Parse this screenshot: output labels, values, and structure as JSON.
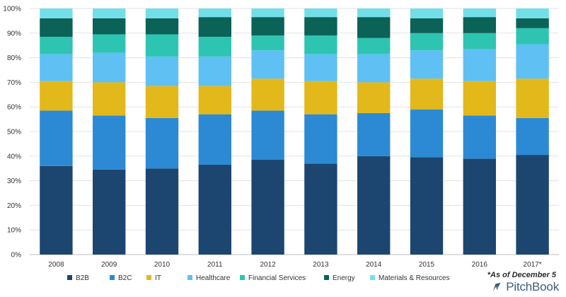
{
  "chart_data": {
    "type": "bar",
    "stacked": true,
    "normalized": true,
    "categories": [
      "2008",
      "2009",
      "2010",
      "2011",
      "2012",
      "2013",
      "2014",
      "2015",
      "2016",
      "2017*"
    ],
    "ylim": [
      0,
      100
    ],
    "yticks": [
      "0%",
      "10%",
      "20%",
      "30%",
      "40%",
      "50%",
      "60%",
      "70%",
      "80%",
      "90%",
      "100%"
    ],
    "grid": true,
    "legend_position": "bottom",
    "series": [
      {
        "name": "B2B",
        "color": "#1c4670",
        "values": [
          36.0,
          34.5,
          35.0,
          36.5,
          38.5,
          37.0,
          40.0,
          39.5,
          39.0,
          40.5
        ]
      },
      {
        "name": "B2C",
        "color": "#2b8ad3",
        "values": [
          22.5,
          22.0,
          20.5,
          20.5,
          20.0,
          20.0,
          17.5,
          19.5,
          17.5,
          15.0
        ]
      },
      {
        "name": "IT",
        "color": "#e2b81b",
        "values": [
          12.0,
          13.5,
          13.0,
          11.5,
          13.0,
          13.5,
          12.5,
          12.5,
          14.0,
          16.0
        ]
      },
      {
        "name": "Healthcare",
        "color": "#5fc0f3",
        "values": [
          11.0,
          12.0,
          12.0,
          12.0,
          11.5,
          11.0,
          11.5,
          11.5,
          13.0,
          14.0
        ]
      },
      {
        "name": "Financial Services",
        "color": "#2dc5b1",
        "values": [
          7.0,
          7.5,
          9.0,
          8.0,
          6.0,
          7.5,
          6.5,
          7.0,
          6.5,
          6.5
        ]
      },
      {
        "name": "Energy",
        "color": "#0b6256",
        "values": [
          7.5,
          6.5,
          6.5,
          8.0,
          7.5,
          7.5,
          8.5,
          6.0,
          6.5,
          4.0
        ]
      },
      {
        "name": "Materials & Resources",
        "color": "#72dfe8",
        "values": [
          4.0,
          4.0,
          4.0,
          3.5,
          3.5,
          3.5,
          3.5,
          4.0,
          3.5,
          4.0
        ]
      }
    ]
  },
  "footnote": "*As of December 5",
  "brand": {
    "name": "PitchBook",
    "color": "#3d5f78"
  }
}
